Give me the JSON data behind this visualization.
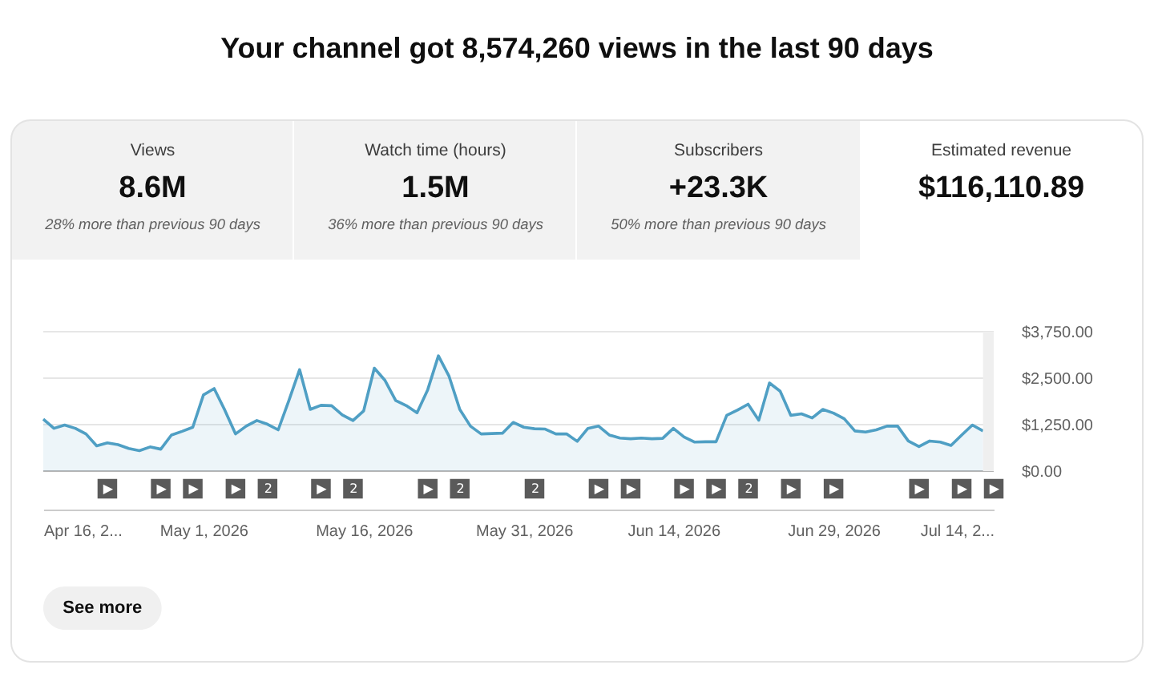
{
  "chart_data": {
    "type": "area",
    "title": "Your channel got 8,574,260 views in the last 90 days",
    "color": "#4f9fc4",
    "x": [
      "2026-04-16",
      "2026-04-17",
      "2026-04-18",
      "2026-04-19",
      "2026-04-20",
      "2026-04-21",
      "2026-04-22",
      "2026-04-23",
      "2026-04-24",
      "2026-04-25",
      "2026-04-26",
      "2026-04-27",
      "2026-04-28",
      "2026-04-29",
      "2026-04-30",
      "2026-05-01",
      "2026-05-02",
      "2026-05-03",
      "2026-05-04",
      "2026-05-05",
      "2026-05-06",
      "2026-05-07",
      "2026-05-08",
      "2026-05-09",
      "2026-05-10",
      "2026-05-11",
      "2026-05-12",
      "2026-05-13",
      "2026-05-14",
      "2026-05-15",
      "2026-05-16",
      "2026-05-17",
      "2026-05-18",
      "2026-05-19",
      "2026-05-20",
      "2026-05-21",
      "2026-05-22",
      "2026-05-23",
      "2026-05-24",
      "2026-05-25",
      "2026-05-26",
      "2026-05-27",
      "2026-05-28",
      "2026-05-29",
      "2026-05-30",
      "2026-05-31",
      "2026-06-01",
      "2026-06-02",
      "2026-06-03",
      "2026-06-04",
      "2026-06-05",
      "2026-06-06",
      "2026-06-07",
      "2026-06-08",
      "2026-06-09",
      "2026-06-10",
      "2026-06-11",
      "2026-06-12",
      "2026-06-13",
      "2026-06-14",
      "2026-06-15",
      "2026-06-16",
      "2026-06-17",
      "2026-06-18",
      "2026-06-19",
      "2026-06-20",
      "2026-06-21",
      "2026-06-22",
      "2026-06-23",
      "2026-06-24",
      "2026-06-25",
      "2026-06-26",
      "2026-06-27",
      "2026-06-28",
      "2026-06-29",
      "2026-06-30",
      "2026-07-01",
      "2026-07-02",
      "2026-07-03",
      "2026-07-04",
      "2026-07-05",
      "2026-07-06",
      "2026-07-07",
      "2026-07-08",
      "2026-07-09",
      "2026-07-10",
      "2026-07-11",
      "2026-07-12",
      "2026-07-13"
    ],
    "values": [
      1400,
      1150,
      1240,
      1150,
      1000,
      680,
      760,
      710,
      610,
      550,
      650,
      590,
      970,
      1070,
      1180,
      2050,
      2220,
      1640,
      1000,
      1210,
      1360,
      1260,
      1110,
      1900,
      2730,
      1660,
      1770,
      1760,
      1510,
      1360,
      1620,
      2770,
      2440,
      1900,
      1760,
      1570,
      2190,
      3100,
      2550,
      1660,
      1210,
      1000,
      1010,
      1020,
      1310,
      1180,
      1140,
      1130,
      1000,
      1000,
      800,
      1150,
      1210,
      970,
      890,
      870,
      890,
      870,
      880,
      1150,
      920,
      780,
      790,
      790,
      1500,
      1640,
      1800,
      1370,
      2370,
      2150,
      1500,
      1540,
      1430,
      1660,
      1560,
      1410,
      1080,
      1050,
      1110,
      1210,
      1210,
      810,
      660,
      810,
      780,
      690,
      970,
      1240,
      1080
    ],
    "xlim": [
      "2026-04-16",
      "2026-07-14"
    ],
    "xticks": [
      {
        "value": "2026-04-16",
        "label": "Apr 16, 2..."
      },
      {
        "value": "2026-05-01",
        "label": "May 1, 2026"
      },
      {
        "value": "2026-05-16",
        "label": "May 16, 2026"
      },
      {
        "value": "2026-05-31",
        "label": "May 31, 2026"
      },
      {
        "value": "2026-06-14",
        "label": "Jun 14, 2026"
      },
      {
        "value": "2026-06-29",
        "label": "Jun 29, 2026"
      },
      {
        "value": "2026-07-14",
        "label": "Jul 14, 2..."
      }
    ],
    "x2lim": [
      "2026-04-16",
      "2026-07-14"
    ],
    "x2ticks": [
      {
        "value": "2026-04-22",
        "label": "▶"
      },
      {
        "value": "2026-04-27",
        "label": "▶"
      },
      {
        "value": "2026-04-30",
        "label": "▶"
      },
      {
        "value": "2026-05-04",
        "label": "▶"
      },
      {
        "value": "2026-05-07",
        "label": "2"
      },
      {
        "value": "2026-05-12",
        "label": "▶"
      },
      {
        "value": "2026-05-15",
        "label": "2"
      },
      {
        "value": "2026-05-22",
        "label": "▶"
      },
      {
        "value": "2026-05-25",
        "label": "2"
      },
      {
        "value": "2026-06-01",
        "label": "2"
      },
      {
        "value": "2026-06-07",
        "label": "▶"
      },
      {
        "value": "2026-06-10",
        "label": "▶"
      },
      {
        "value": "2026-06-15",
        "label": "▶"
      },
      {
        "value": "2026-06-18",
        "label": "▶"
      },
      {
        "value": "2026-06-21",
        "label": "2"
      },
      {
        "value": "2026-06-25",
        "label": "▶"
      },
      {
        "value": "2026-06-29",
        "label": "▶"
      },
      {
        "value": "2026-07-07",
        "label": "▶"
      },
      {
        "value": "2026-07-11",
        "label": "▶"
      },
      {
        "value": "2026-07-14",
        "label": "▶"
      }
    ],
    "ylim": [
      0,
      3750
    ],
    "yticks": [
      {
        "value": 0,
        "label": "$0.00"
      },
      {
        "value": 1250,
        "label": "$1,250.00"
      },
      {
        "value": 2500,
        "label": "$2,500.00"
      },
      {
        "value": 3750,
        "label": "$3,750.00"
      }
    ],
    "grid": "y",
    "bands": [
      {
        "axis": "x",
        "from": "2026-07-13",
        "to": "2026-07-14",
        "color": "#efefef"
      }
    ],
    "annotations": [
      "Views",
      "8.6M",
      "28% more than previous 90 days",
      "Watch time (hours)",
      "1.5M",
      "36% more than previous 90 days",
      "Subscribers",
      "+23.3K",
      "50% more than previous 90 days",
      "Estimated revenue",
      "$116,110.89",
      "See more"
    ]
  }
}
